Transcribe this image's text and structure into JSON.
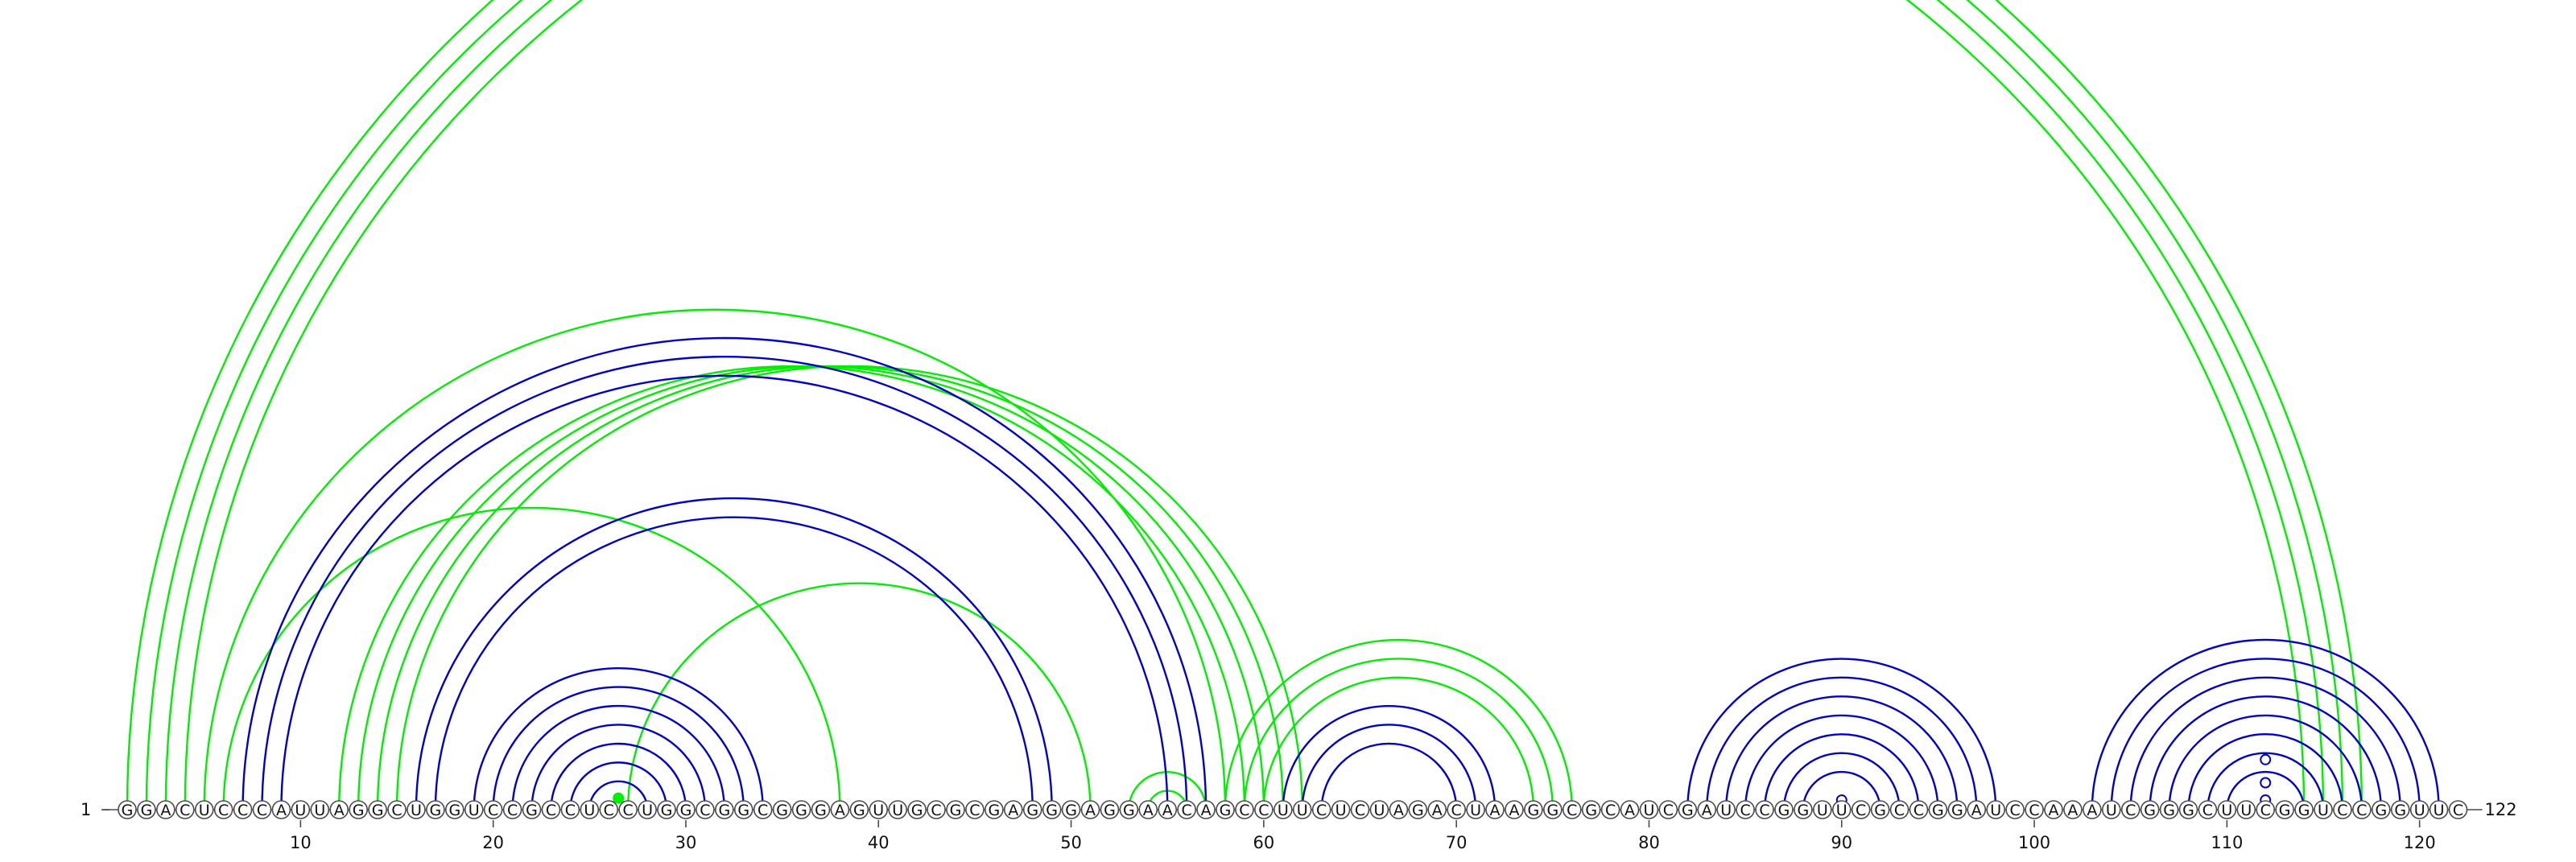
{
  "sequence": "GGACUCCCAUUAGGCUGGUCCGCCUCCUGGCGGCGGGAGUUGCGCGAGGGAGGAACAGCCUUCUCUAGACUAAGGCGCAUCGAUCCGGUUCGCCGGAUCCAAAUCGGGCUUCGGUCCGGUUC",
  "start_label": "1",
  "end_label": "122",
  "ticks": [
    10,
    20,
    30,
    40,
    50,
    60,
    70,
    80,
    90,
    100,
    110,
    120
  ],
  "colors": {
    "green": "#00ee00",
    "blue": "#0000cc",
    "backbone": "#4a4a4a"
  },
  "pairs_blue": [
    [
      7,
      57
    ],
    [
      8,
      56
    ],
    [
      9,
      55
    ],
    [
      16,
      49
    ],
    [
      17,
      48
    ],
    [
      19,
      34
    ],
    [
      20,
      33
    ],
    [
      21,
      32
    ],
    [
      22,
      31
    ],
    [
      23,
      30
    ],
    [
      24,
      29
    ],
    [
      25,
      28
    ],
    [
      61,
      72
    ],
    [
      62,
      71
    ],
    [
      63,
      70
    ],
    [
      82,
      98
    ],
    [
      83,
      97
    ],
    [
      84,
      96
    ],
    [
      85,
      95
    ],
    [
      86,
      94
    ],
    [
      87,
      93
    ],
    [
      88,
      92
    ],
    [
      103,
      121
    ],
    [
      104,
      120
    ],
    [
      105,
      119
    ],
    [
      106,
      118
    ],
    [
      107,
      117
    ],
    [
      108,
      116
    ],
    [
      109,
      115
    ],
    [
      110,
      114
    ]
  ],
  "pairs_green": [
    [
      1,
      117
    ],
    [
      2,
      116
    ],
    [
      3,
      115
    ],
    [
      4,
      114
    ],
    [
      5,
      58
    ],
    [
      12,
      59
    ],
    [
      13,
      60
    ],
    [
      14,
      61
    ],
    [
      15,
      62
    ],
    [
      26,
      27
    ],
    [
      6,
      38
    ],
    [
      27,
      51
    ],
    [
      53,
      57
    ],
    [
      54,
      56
    ],
    [
      58,
      76
    ],
    [
      59,
      75
    ],
    [
      60,
      74
    ]
  ],
  "markers": [
    {
      "pos": 26.5,
      "height": 0.6,
      "filled": true,
      "color": "#00ee00"
    },
    {
      "pos": 90,
      "height": 0.5,
      "filled": false,
      "color": "#0000cc"
    },
    {
      "pos": 112,
      "height": 0.5,
      "filled": false,
      "color": "#0000cc"
    },
    {
      "pos": 112,
      "height": 1.4,
      "filled": false,
      "color": "#0000cc"
    },
    {
      "pos": 112,
      "height": 2.6,
      "filled": false,
      "color": "#0000cc"
    }
  ]
}
